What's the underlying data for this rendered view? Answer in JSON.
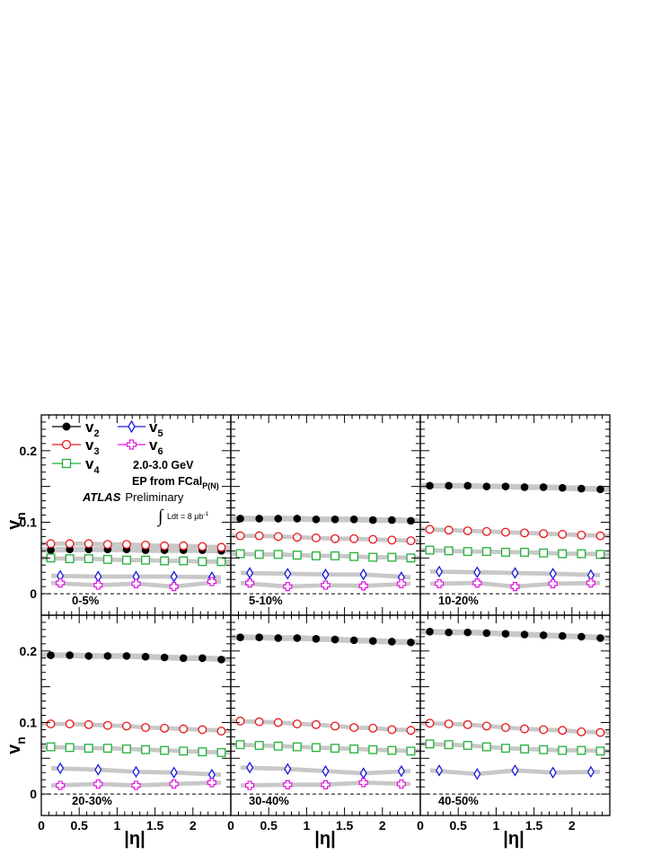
{
  "chart_data": {
    "type": "scatter",
    "ylabel": "v",
    "ylabel_sub": "n",
    "xlabel": "|η|",
    "xlim": [
      0,
      2.5
    ],
    "ylim": [
      -0.03,
      0.25
    ],
    "xticks": [
      "0",
      "0.5",
      "1",
      "1.5",
      "2"
    ],
    "yticks": [
      "0",
      "0.1",
      "0.2"
    ],
    "legend": [
      {
        "key": "v2",
        "label": "v",
        "sub": "2"
      },
      {
        "key": "v3",
        "label": "v",
        "sub": "3"
      },
      {
        "key": "v4",
        "label": "v",
        "sub": "4"
      },
      {
        "key": "v5",
        "label": "v",
        "sub": "5"
      },
      {
        "key": "v6",
        "label": "v",
        "sub": "6"
      }
    ],
    "annotations": {
      "pt_range": "2.0-3.0 GeV",
      "ep_prefix": "EP from FCal",
      "ep_sub": "P(N)",
      "atlas": "ATLAS",
      "preliminary": "Preliminary",
      "lumi_integral": "∫",
      "lumi": "Ldt = 8 μb",
      "lumi_exp": "-1"
    },
    "colors": {
      "v2": "#000000",
      "v3": "#e8161d",
      "v4": "#22b03a",
      "v5": "#1a1adf",
      "v6": "#e014e0",
      "band": "#c8c8c8"
    },
    "panels": [
      {
        "centrality": "0-5%",
        "series": [
          {
            "key": "v2",
            "x": [
              0.125,
              0.375,
              0.625,
              0.875,
              1.125,
              1.375,
              1.625,
              1.875,
              2.125,
              2.375
            ],
            "y": [
              0.061,
              0.062,
              0.062,
              0.062,
              0.062,
              0.061,
              0.061,
              0.061,
              0.061,
              0.06
            ]
          },
          {
            "key": "v3",
            "x": [
              0.125,
              0.375,
              0.625,
              0.875,
              1.125,
              1.375,
              1.625,
              1.875,
              2.125,
              2.375
            ],
            "y": [
              0.07,
              0.07,
              0.07,
              0.069,
              0.069,
              0.068,
              0.067,
              0.067,
              0.066,
              0.065
            ]
          },
          {
            "key": "v4",
            "x": [
              0.125,
              0.375,
              0.625,
              0.875,
              1.125,
              1.375,
              1.625,
              1.875,
              2.125,
              2.375
            ],
            "y": [
              0.05,
              0.049,
              0.049,
              0.048,
              0.047,
              0.047,
              0.046,
              0.046,
              0.045,
              0.045
            ]
          },
          {
            "key": "v5",
            "x": [
              0.25,
              0.75,
              1.25,
              1.75,
              2.25
            ],
            "y": [
              0.025,
              0.024,
              0.024,
              0.024,
              0.023
            ]
          },
          {
            "key": "v6",
            "x": [
              0.25,
              0.75,
              1.25,
              1.75,
              2.25
            ],
            "y": [
              0.015,
              0.012,
              0.014,
              0.01,
              0.017
            ]
          }
        ]
      },
      {
        "centrality": "5-10%",
        "series": [
          {
            "key": "v2",
            "x": [
              0.125,
              0.375,
              0.625,
              0.875,
              1.125,
              1.375,
              1.625,
              1.875,
              2.125,
              2.375
            ],
            "y": [
              0.105,
              0.105,
              0.105,
              0.105,
              0.104,
              0.104,
              0.104,
              0.103,
              0.103,
              0.102
            ]
          },
          {
            "key": "v3",
            "x": [
              0.125,
              0.375,
              0.625,
              0.875,
              1.125,
              1.375,
              1.625,
              1.875,
              2.125,
              2.375
            ],
            "y": [
              0.081,
              0.081,
              0.08,
              0.079,
              0.078,
              0.077,
              0.077,
              0.076,
              0.075,
              0.074
            ]
          },
          {
            "key": "v4",
            "x": [
              0.125,
              0.375,
              0.625,
              0.875,
              1.125,
              1.375,
              1.625,
              1.875,
              2.125,
              2.375
            ],
            "y": [
              0.056,
              0.055,
              0.055,
              0.054,
              0.053,
              0.053,
              0.052,
              0.051,
              0.051,
              0.05
            ]
          },
          {
            "key": "v5",
            "x": [
              0.25,
              0.75,
              1.25,
              1.75,
              2.25
            ],
            "y": [
              0.029,
              0.028,
              0.027,
              0.027,
              0.023
            ]
          },
          {
            "key": "v6",
            "x": [
              0.25,
              0.75,
              1.25,
              1.75,
              2.25
            ],
            "y": [
              0.015,
              0.01,
              0.012,
              0.011,
              0.014
            ]
          }
        ]
      },
      {
        "centrality": "10-20%",
        "series": [
          {
            "key": "v2",
            "x": [
              0.125,
              0.375,
              0.625,
              0.875,
              1.125,
              1.375,
              1.625,
              1.875,
              2.125,
              2.375
            ],
            "y": [
              0.151,
              0.151,
              0.151,
              0.15,
              0.15,
              0.149,
              0.149,
              0.148,
              0.147,
              0.146
            ]
          },
          {
            "key": "v3",
            "x": [
              0.125,
              0.375,
              0.625,
              0.875,
              1.125,
              1.375,
              1.625,
              1.875,
              2.125,
              2.375
            ],
            "y": [
              0.09,
              0.089,
              0.088,
              0.087,
              0.086,
              0.085,
              0.084,
              0.083,
              0.082,
              0.081
            ]
          },
          {
            "key": "v4",
            "x": [
              0.125,
              0.375,
              0.625,
              0.875,
              1.125,
              1.375,
              1.625,
              1.875,
              2.125,
              2.375
            ],
            "y": [
              0.061,
              0.06,
              0.059,
              0.059,
              0.058,
              0.058,
              0.057,
              0.056,
              0.056,
              0.055
            ]
          },
          {
            "key": "v5",
            "x": [
              0.25,
              0.75,
              1.25,
              1.75,
              2.25
            ],
            "y": [
              0.031,
              0.03,
              0.029,
              0.028,
              0.026
            ]
          },
          {
            "key": "v6",
            "x": [
              0.25,
              0.75,
              1.25,
              1.75,
              2.25
            ],
            "y": [
              0.014,
              0.015,
              0.01,
              0.014,
              0.015
            ]
          }
        ]
      },
      {
        "centrality": "20-30%",
        "series": [
          {
            "key": "v2",
            "x": [
              0.125,
              0.375,
              0.625,
              0.875,
              1.125,
              1.375,
              1.625,
              1.875,
              2.125,
              2.375
            ],
            "y": [
              0.194,
              0.194,
              0.193,
              0.193,
              0.193,
              0.192,
              0.191,
              0.19,
              0.19,
              0.188
            ]
          },
          {
            "key": "v3",
            "x": [
              0.125,
              0.375,
              0.625,
              0.875,
              1.125,
              1.375,
              1.625,
              1.875,
              2.125,
              2.375
            ],
            "y": [
              0.098,
              0.098,
              0.097,
              0.096,
              0.095,
              0.093,
              0.092,
              0.091,
              0.09,
              0.088
            ]
          },
          {
            "key": "v4",
            "x": [
              0.125,
              0.375,
              0.625,
              0.875,
              1.125,
              1.375,
              1.625,
              1.875,
              2.125,
              2.375
            ],
            "y": [
              0.066,
              0.065,
              0.064,
              0.064,
              0.063,
              0.062,
              0.061,
              0.06,
              0.059,
              0.058
            ]
          },
          {
            "key": "v5",
            "x": [
              0.25,
              0.75,
              1.25,
              1.75,
              2.25
            ],
            "y": [
              0.036,
              0.034,
              0.031,
              0.03,
              0.027
            ]
          },
          {
            "key": "v6",
            "x": [
              0.25,
              0.75,
              1.25,
              1.75,
              2.25
            ],
            "y": [
              0.012,
              0.014,
              0.012,
              0.014,
              0.016
            ]
          }
        ]
      },
      {
        "centrality": "30-40%",
        "series": [
          {
            "key": "v2",
            "x": [
              0.125,
              0.375,
              0.625,
              0.875,
              1.125,
              1.375,
              1.625,
              1.875,
              2.125,
              2.375
            ],
            "y": [
              0.219,
              0.219,
              0.218,
              0.218,
              0.217,
              0.216,
              0.215,
              0.214,
              0.213,
              0.212
            ]
          },
          {
            "key": "v3",
            "x": [
              0.125,
              0.375,
              0.625,
              0.875,
              1.125,
              1.375,
              1.625,
              1.875,
              2.125,
              2.375
            ],
            "y": [
              0.102,
              0.101,
              0.1,
              0.098,
              0.097,
              0.095,
              0.093,
              0.092,
              0.09,
              0.089
            ]
          },
          {
            "key": "v4",
            "x": [
              0.125,
              0.375,
              0.625,
              0.875,
              1.125,
              1.375,
              1.625,
              1.875,
              2.125,
              2.375
            ],
            "y": [
              0.069,
              0.068,
              0.067,
              0.066,
              0.065,
              0.064,
              0.063,
              0.062,
              0.061,
              0.06
            ]
          },
          {
            "key": "v5",
            "x": [
              0.25,
              0.75,
              1.25,
              1.75,
              2.25
            ],
            "y": [
              0.037,
              0.035,
              0.032,
              0.029,
              0.032
            ]
          },
          {
            "key": "v6",
            "x": [
              0.25,
              0.75,
              1.25,
              1.75,
              2.25
            ],
            "y": [
              0.012,
              0.013,
              0.013,
              0.016,
              0.014
            ]
          }
        ]
      },
      {
        "centrality": "40-50%",
        "series": [
          {
            "key": "v2",
            "x": [
              0.125,
              0.375,
              0.625,
              0.875,
              1.125,
              1.375,
              1.625,
              1.875,
              2.125,
              2.375
            ],
            "y": [
              0.227,
              0.226,
              0.226,
              0.225,
              0.224,
              0.223,
              0.222,
              0.221,
              0.22,
              0.218
            ]
          },
          {
            "key": "v3",
            "x": [
              0.125,
              0.375,
              0.625,
              0.875,
              1.125,
              1.375,
              1.625,
              1.875,
              2.125,
              2.375
            ],
            "y": [
              0.099,
              0.098,
              0.097,
              0.095,
              0.093,
              0.091,
              0.09,
              0.089,
              0.087,
              0.086
            ]
          },
          {
            "key": "v4",
            "x": [
              0.125,
              0.375,
              0.625,
              0.875,
              1.125,
              1.375,
              1.625,
              1.875,
              2.125,
              2.375
            ],
            "y": [
              0.07,
              0.069,
              0.068,
              0.066,
              0.064,
              0.063,
              0.062,
              0.061,
              0.061,
              0.06
            ]
          },
          {
            "key": "v5",
            "x": [
              0.25,
              0.75,
              1.25,
              1.75,
              2.25
            ],
            "y": [
              0.033,
              0.028,
              0.033,
              0.03,
              0.031
            ]
          }
        ]
      }
    ]
  }
}
